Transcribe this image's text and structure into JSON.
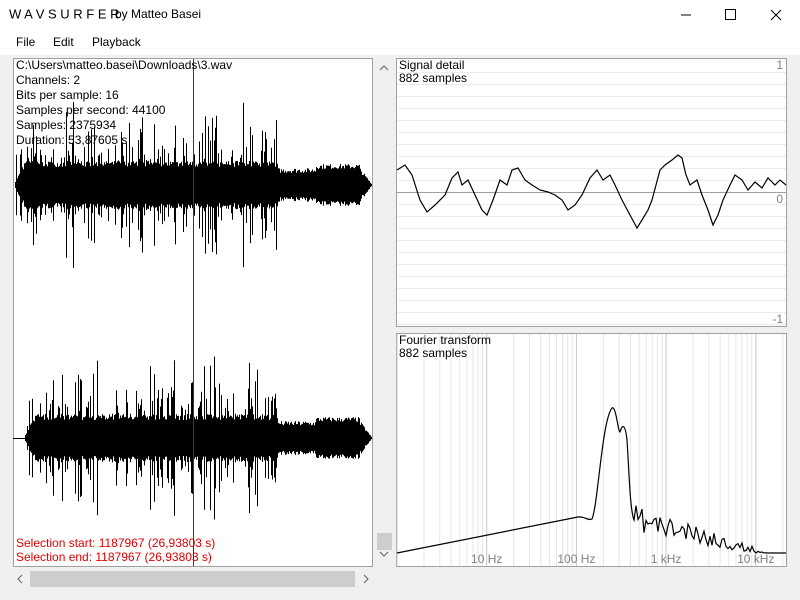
{
  "window": {
    "title": "W A V   S U R F E R",
    "subtitle": "by Matteo Basei"
  },
  "menu": [
    "File",
    "Edit",
    "Playback"
  ],
  "file_info": [
    "C:\\Users\\matteo.basei\\Downloads\\3.wav",
    "Channels: 2",
    "Bits per sample: 16",
    "Samples per second: 44100",
    "Samples: 2375934",
    "Duration: 53,87605 s"
  ],
  "selection": [
    "Selection start: 1187967 (26,93803 s)",
    "Selection end: 1187967 (26,93803 s)"
  ],
  "signal_detail": {
    "title": "Signal detail",
    "samples": "882 samples",
    "axis_labels": [
      "1",
      "0",
      "-1"
    ]
  },
  "fourier": {
    "title": "Fourier transform",
    "samples": "882 samples",
    "axis_labels": [
      "10 Hz",
      "100 Hz",
      "1 kHz",
      "10 kHz"
    ]
  }
}
